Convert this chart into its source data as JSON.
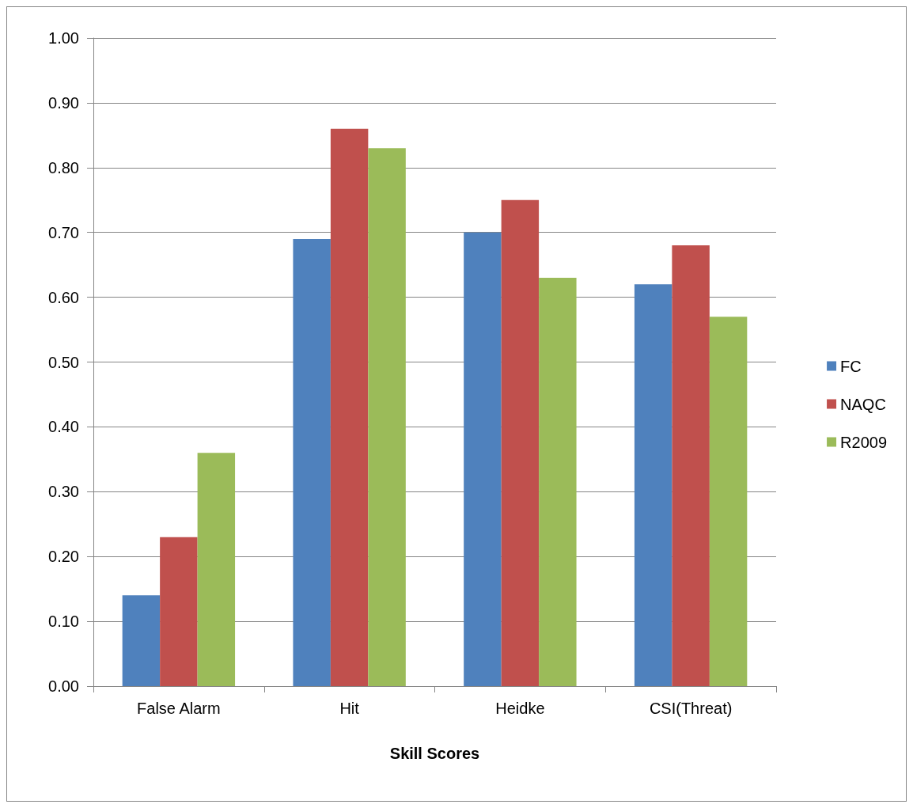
{
  "chart_data": {
    "type": "bar",
    "xlabel": "Skill Scores",
    "categories": [
      "False Alarm",
      "Hit",
      "Heidke",
      "CSI(Threat)"
    ],
    "series": [
      {
        "name": "FC",
        "color": "#4f81bd",
        "values": [
          0.14,
          0.69,
          0.7,
          0.62
        ]
      },
      {
        "name": "NAQC",
        "color": "#c0504d",
        "values": [
          0.23,
          0.86,
          0.75,
          0.68
        ]
      },
      {
        "name": "R2009",
        "color": "#9bbb59",
        "values": [
          0.36,
          0.83,
          0.63,
          0.57
        ]
      }
    ],
    "ylim": [
      0,
      1
    ],
    "yticks": [
      {
        "value": 0,
        "label": "0.00"
      },
      {
        "value": 0.1,
        "label": "0.10"
      },
      {
        "value": 0.2,
        "label": "0.20"
      },
      {
        "value": 0.3,
        "label": "0.30"
      },
      {
        "value": 0.4,
        "label": "0.40"
      },
      {
        "value": 0.5,
        "label": "0.50"
      },
      {
        "value": 0.6,
        "label": "0.60"
      },
      {
        "value": 0.7,
        "label": "0.70"
      },
      {
        "value": 0.8,
        "label": "0.80"
      },
      {
        "value": 0.9,
        "label": "0.90"
      },
      {
        "value": 1,
        "label": "1.00"
      }
    ],
    "grid": "y",
    "legend": "right"
  }
}
